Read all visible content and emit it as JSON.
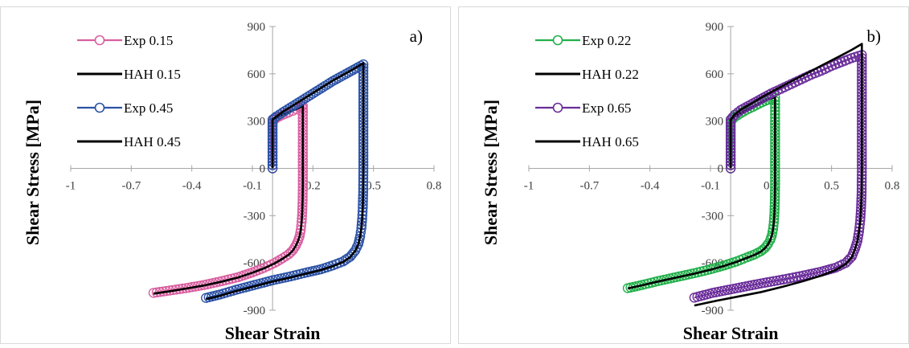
{
  "chart_data": [
    {
      "type": "scatter",
      "panel_label": "a)",
      "xlabel": "Shear Strain",
      "ylabel": "Shear Stress [MPa]",
      "xlim": [
        -1,
        0.8
      ],
      "ylim": [
        -900,
        900
      ],
      "x_ticks": [
        -1,
        -0.7,
        -0.4,
        -0.1,
        0.2,
        0.5,
        0.8
      ],
      "x_tick_labels": [
        "-1",
        "-0.7",
        "-0.4",
        "-0.1",
        "0.2",
        "0.5",
        "0.8"
      ],
      "y_ticks": [
        -900,
        -600,
        -300,
        0,
        300,
        600,
        900
      ],
      "y_tick_labels": [
        "-900",
        "-600",
        "-300",
        "0",
        "300",
        "600",
        "900"
      ],
      "legend_position": "top-left",
      "grid": false,
      "series": [
        {
          "name": "Exp 0.15",
          "color": "#d95fa0",
          "marker": "circle",
          "style": "markers",
          "x": [
            0,
            0,
            0.02,
            0.05,
            0.08,
            0.1,
            0.12,
            0.135,
            0.145,
            0.15,
            0.15,
            0.15,
            0.15,
            0.149,
            0.147,
            0.144,
            0.14,
            0.134,
            0.126,
            0.115,
            0.1,
            0.08,
            0.05,
            0.01,
            -0.04,
            -0.1,
            -0.17,
            -0.25,
            -0.34,
            -0.43,
            -0.51,
            -0.59
          ],
          "y": [
            0,
            300,
            320,
            340,
            355,
            365,
            375,
            385,
            392,
            398,
            300,
            100,
            -100,
            -200,
            -280,
            -340,
            -390,
            -430,
            -460,
            -490,
            -520,
            -545,
            -570,
            -600,
            -630,
            -660,
            -690,
            -715,
            -740,
            -760,
            -775,
            -790
          ]
        },
        {
          "name": "HAH 0.15",
          "color": "#000000",
          "style": "line",
          "x": [
            0,
            0,
            0.02,
            0.05,
            0.08,
            0.1,
            0.12,
            0.135,
            0.145,
            0.15,
            0.15,
            0.15,
            0.15,
            0.149,
            0.147,
            0.144,
            0.14,
            0.134,
            0.126,
            0.115,
            0.1,
            0.08,
            0.05,
            0.01,
            -0.04,
            -0.1,
            -0.17,
            -0.25,
            -0.34,
            -0.43,
            -0.51,
            -0.59
          ],
          "y": [
            0,
            305,
            322,
            342,
            357,
            367,
            377,
            387,
            394,
            400,
            300,
            100,
            -100,
            -200,
            -280,
            -340,
            -390,
            -430,
            -462,
            -492,
            -522,
            -548,
            -573,
            -603,
            -633,
            -662,
            -692,
            -718,
            -743,
            -763,
            -780,
            -795
          ]
        },
        {
          "name": "Exp 0.45",
          "color": "#2c52a6",
          "marker": "circle",
          "style": "markers",
          "x": [
            0,
            0,
            0.02,
            0.05,
            0.1,
            0.15,
            0.2,
            0.25,
            0.3,
            0.35,
            0.4,
            0.45,
            0.45,
            0.45,
            0.45,
            0.449,
            0.447,
            0.444,
            0.44,
            0.434,
            0.425,
            0.41,
            0.385,
            0.35,
            0.3,
            0.24,
            0.17,
            0.09,
            0.0,
            -0.09,
            -0.18,
            -0.26,
            -0.33
          ],
          "y": [
            0,
            310,
            330,
            355,
            395,
            435,
            475,
            515,
            555,
            590,
            625,
            660,
            500,
            200,
            0,
            -150,
            -250,
            -320,
            -380,
            -430,
            -480,
            -520,
            -560,
            -590,
            -615,
            -640,
            -660,
            -685,
            -710,
            -740,
            -770,
            -800,
            -822
          ]
        },
        {
          "name": "HAH 0.45",
          "color": "#000000",
          "style": "line",
          "x": [
            0,
            0,
            0.02,
            0.05,
            0.1,
            0.15,
            0.2,
            0.25,
            0.3,
            0.35,
            0.4,
            0.45,
            0.45,
            0.45,
            0.45,
            0.449,
            0.447,
            0.444,
            0.44,
            0.434,
            0.425,
            0.41,
            0.385,
            0.35,
            0.3,
            0.24,
            0.17,
            0.09,
            0.0,
            -0.09,
            -0.18,
            -0.26,
            -0.33
          ],
          "y": [
            0,
            310,
            330,
            358,
            398,
            438,
            478,
            518,
            558,
            594,
            630,
            668,
            500,
            200,
            0,
            -150,
            -250,
            -320,
            -380,
            -432,
            -482,
            -523,
            -563,
            -594,
            -620,
            -645,
            -667,
            -692,
            -718,
            -748,
            -778,
            -808,
            -830
          ]
        }
      ]
    },
    {
      "type": "scatter",
      "panel_label": "b)",
      "xlabel": "Shear Strain",
      "ylabel": "Shear Stress [MPa]",
      "xlim": [
        -1,
        0.8
      ],
      "ylim": [
        -900,
        900
      ],
      "x_ticks": [
        -1,
        -0.7,
        -0.4,
        -0.1,
        0.2,
        0.5,
        0.8
      ],
      "x_tick_labels": [
        "-1",
        "-0.7",
        "-0.4",
        "-0.1",
        "0.2",
        "0.5",
        "0.8"
      ],
      "y_ticks": [
        -900,
        -600,
        -300,
        0,
        300,
        600,
        900
      ],
      "y_tick_labels": [
        "-900",
        "-600",
        "-300",
        "0",
        "300",
        "600",
        "900"
      ],
      "legend_position": "top-left",
      "grid": false,
      "series": [
        {
          "name": "Exp 0.22",
          "color": "#22b04b",
          "marker": "circle",
          "style": "markers",
          "x": [
            0,
            0,
            0.02,
            0.05,
            0.08,
            0.11,
            0.14,
            0.17,
            0.2,
            0.22,
            0.22,
            0.22,
            0.22,
            0.219,
            0.217,
            0.214,
            0.21,
            0.204,
            0.196,
            0.185,
            0.17,
            0.15,
            0.12,
            0.08,
            0.03,
            -0.03,
            -0.1,
            -0.18,
            -0.27,
            -0.36,
            -0.44,
            -0.51
          ],
          "y": [
            0,
            300,
            325,
            350,
            372,
            390,
            410,
            428,
            442,
            450,
            300,
            100,
            -100,
            -200,
            -280,
            -340,
            -385,
            -425,
            -455,
            -480,
            -505,
            -525,
            -545,
            -565,
            -590,
            -615,
            -640,
            -665,
            -690,
            -715,
            -740,
            -760
          ]
        },
        {
          "name": "HAH 0.22",
          "color": "#000000",
          "style": "line",
          "x": [
            0,
            0,
            0.02,
            0.05,
            0.08,
            0.11,
            0.14,
            0.17,
            0.2,
            0.22,
            0.22,
            0.22,
            0.22,
            0.219,
            0.217,
            0.214,
            0.21,
            0.204,
            0.196,
            0.185,
            0.17,
            0.15,
            0.12,
            0.08,
            0.03,
            -0.03,
            -0.1,
            -0.18,
            -0.27,
            -0.36,
            -0.44,
            -0.51
          ],
          "y": [
            0,
            305,
            328,
            352,
            374,
            392,
            412,
            430,
            444,
            452,
            300,
            100,
            -100,
            -200,
            -280,
            -340,
            -386,
            -426,
            -456,
            -482,
            -507,
            -528,
            -548,
            -568,
            -593,
            -618,
            -643,
            -668,
            -693,
            -718,
            -742,
            -762
          ]
        },
        {
          "name": "Exp 0.65",
          "color": "#6a2d9a",
          "marker": "circle",
          "style": "markers",
          "x": [
            0,
            0,
            0.02,
            0.05,
            0.1,
            0.15,
            0.2,
            0.25,
            0.3,
            0.35,
            0.4,
            0.45,
            0.5,
            0.55,
            0.6,
            0.65,
            0.65,
            0.65,
            0.65,
            0.649,
            0.646,
            0.642,
            0.636,
            0.628,
            0.616,
            0.6,
            0.57,
            0.52,
            0.45,
            0.36,
            0.26,
            0.15,
            0.03,
            -0.09,
            -0.18
          ],
          "y": [
            0,
            310,
            340,
            370,
            405,
            440,
            475,
            505,
            535,
            565,
            595,
            620,
            650,
            675,
            700,
            720,
            500,
            200,
            0,
            -150,
            -250,
            -330,
            -400,
            -460,
            -510,
            -560,
            -600,
            -630,
            -655,
            -680,
            -705,
            -730,
            -760,
            -790,
            -820
          ]
        },
        {
          "name": "HAH 0.65",
          "color": "#000000",
          "style": "line",
          "x": [
            0,
            0,
            0.02,
            0.05,
            0.1,
            0.15,
            0.2,
            0.25,
            0.3,
            0.35,
            0.4,
            0.45,
            0.5,
            0.55,
            0.6,
            0.65,
            0.65,
            0.65,
            0.65,
            0.649,
            0.646,
            0.642,
            0.636,
            0.628,
            0.616,
            0.6,
            0.57,
            0.52,
            0.45,
            0.36,
            0.26,
            0.15,
            0.03,
            -0.09,
            -0.18
          ],
          "y": [
            0,
            310,
            342,
            372,
            410,
            448,
            484,
            518,
            552,
            585,
            618,
            652,
            685,
            718,
            752,
            790,
            500,
            200,
            0,
            -150,
            -250,
            -330,
            -400,
            -460,
            -512,
            -565,
            -608,
            -645,
            -680,
            -715,
            -750,
            -785,
            -815,
            -845,
            -870
          ]
        }
      ]
    }
  ]
}
